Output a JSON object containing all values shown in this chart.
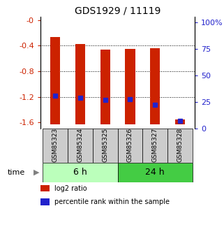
{
  "title": "GDS1929 / 11119",
  "samples": [
    "GSM85323",
    "GSM85324",
    "GSM85325",
    "GSM85326",
    "GSM85327",
    "GSM85328"
  ],
  "log2_bottom": [
    -1.63,
    -1.63,
    -1.63,
    -1.63,
    -1.63,
    -1.63
  ],
  "log2_top": [
    -0.27,
    -0.37,
    -0.46,
    -0.45,
    -0.44,
    -1.55
  ],
  "percentile_rank_y": [
    -1.18,
    -1.22,
    -1.25,
    -1.24,
    -1.32,
    -1.57
  ],
  "bar_color": "#cc2200",
  "dot_color": "#2222cc",
  "ylim_left": [
    -1.7,
    0.05
  ],
  "ylim_right": [
    0,
    105
  ],
  "yticks_left": [
    0.0,
    -0.4,
    -0.8,
    -1.2,
    -1.6
  ],
  "yticks_right": [
    0,
    25,
    50,
    75,
    100
  ],
  "ytick_labels_left": [
    "-0",
    "-0.4",
    "-0.8",
    "-1.2",
    "-1.6"
  ],
  "ytick_labels_right": [
    "0",
    "25",
    "50",
    "75",
    "100%"
  ],
  "groups": [
    {
      "label": "6 h",
      "indices": [
        0,
        1,
        2
      ],
      "color": "#bbffbb"
    },
    {
      "label": "24 h",
      "indices": [
        3,
        4,
        5
      ],
      "color": "#44cc44"
    }
  ],
  "time_label": "time",
  "legend_entries": [
    {
      "label": "log2 ratio",
      "color": "#cc2200"
    },
    {
      "label": "percentile rank within the sample",
      "color": "#2222cc"
    }
  ],
  "bar_width": 0.4,
  "background_color": "#ffffff",
  "plot_bg": "#ffffff",
  "label_box_color": "#cccccc",
  "grid_color": "#000000",
  "left_axis_color": "#cc2200",
  "right_axis_color": "#2222cc",
  "grid_lines": [
    -0.4,
    -0.8,
    -1.2
  ],
  "dot_size": 5
}
